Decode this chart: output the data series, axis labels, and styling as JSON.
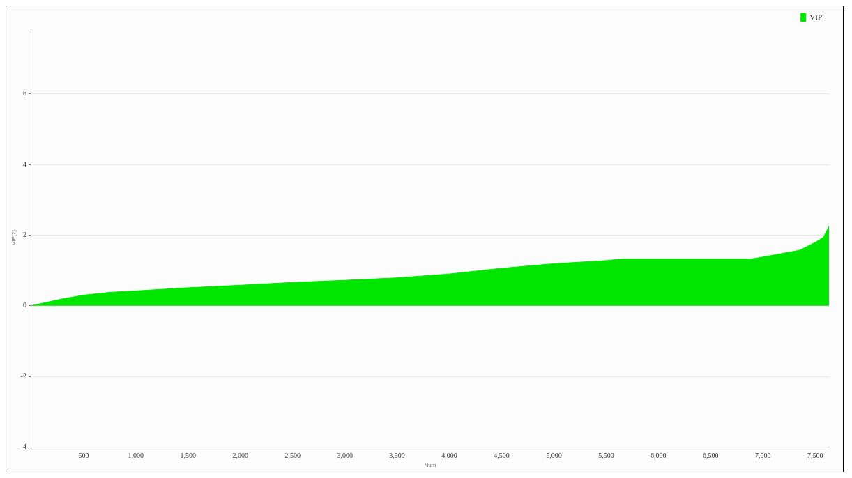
{
  "chart_data": {
    "type": "area",
    "xlabel": "Num",
    "ylabel": "VIP[2]",
    "x": [
      0,
      289,
      500,
      750,
      1000,
      1500,
      2000,
      2500,
      3000,
      3500,
      4000,
      4500,
      5000,
      5500,
      5640,
      6880,
      7000,
      7350,
      7500,
      7580,
      7632
    ],
    "series": [
      {
        "name": "VIP",
        "color": "#00e600",
        "values": [
          0,
          0.19,
          0.3,
          0.38,
          0.42,
          0.51,
          0.58,
          0.66,
          0.72,
          0.79,
          0.9,
          1.06,
          1.19,
          1.28,
          1.32,
          1.32,
          1.38,
          1.57,
          1.79,
          1.94,
          2.26
        ]
      }
    ],
    "xlim": [
      0,
      7632
    ],
    "xticks": [
      500,
      {
        "value": 1000,
        "label": "1,000"
      },
      {
        "value": 1500,
        "label": "1,500"
      },
      {
        "value": 2000,
        "label": "2,000"
      },
      {
        "value": 2500,
        "label": "2,500"
      },
      {
        "value": 3000,
        "label": "3,000"
      },
      {
        "value": 3500,
        "label": "3,500"
      },
      {
        "value": 4000,
        "label": "4,000"
      },
      {
        "value": 4500,
        "label": "4,500"
      },
      {
        "value": 5000,
        "label": "5,000"
      },
      {
        "value": 5500,
        "label": "5,500"
      },
      {
        "value": 6000,
        "label": "6,000"
      },
      {
        "value": 6500,
        "label": "6,500"
      },
      {
        "value": 7000,
        "label": "7,000"
      },
      {
        "value": 7500,
        "label": "7,500"
      }
    ],
    "ylim": [
      -4,
      7.85
    ],
    "yticks": [
      -4,
      -2,
      0,
      2,
      4,
      6
    ],
    "grid": "y",
    "legend": "top right"
  }
}
